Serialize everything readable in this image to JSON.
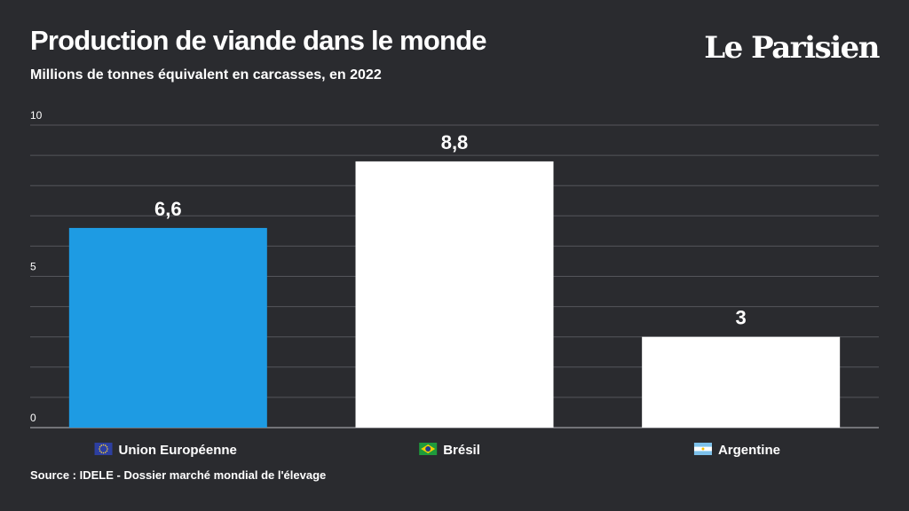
{
  "header": {
    "title": "Production de viande dans le monde",
    "subtitle": "Millions de tonnes équivalent en carcasses, en 2022",
    "logo": "Le Parisien"
  },
  "footer": {
    "source": "Source : IDELE - Dossier marché mondial de l'élevage"
  },
  "colors": {
    "background": "#2a2b2f",
    "highlight_bar": "#1e9be3",
    "default_bar": "#ffffff",
    "text": "#ffffff",
    "grid": "#55565b"
  },
  "chart_data": {
    "type": "bar",
    "title": "Production de viande dans le monde",
    "subtitle": "Millions de tonnes équivalent en carcasses, en 2022",
    "categories": [
      "Union Européenne",
      "Brésil",
      "Argentine"
    ],
    "category_flags": [
      "eu-flag-icon",
      "brazil-flag-icon",
      "argentina-flag-icon"
    ],
    "values": [
      6.6,
      8.8,
      3
    ],
    "data_labels": [
      "6,6",
      "8,8",
      "3"
    ],
    "bar_colors": [
      "#1e9be3",
      "#ffffff",
      "#ffffff"
    ],
    "ylim": [
      0,
      10
    ],
    "yticks": [
      0,
      5,
      10
    ],
    "ytick_labels": [
      "0",
      "5",
      "10"
    ],
    "grid_step": 1,
    "grid": true,
    "legend": false
  }
}
